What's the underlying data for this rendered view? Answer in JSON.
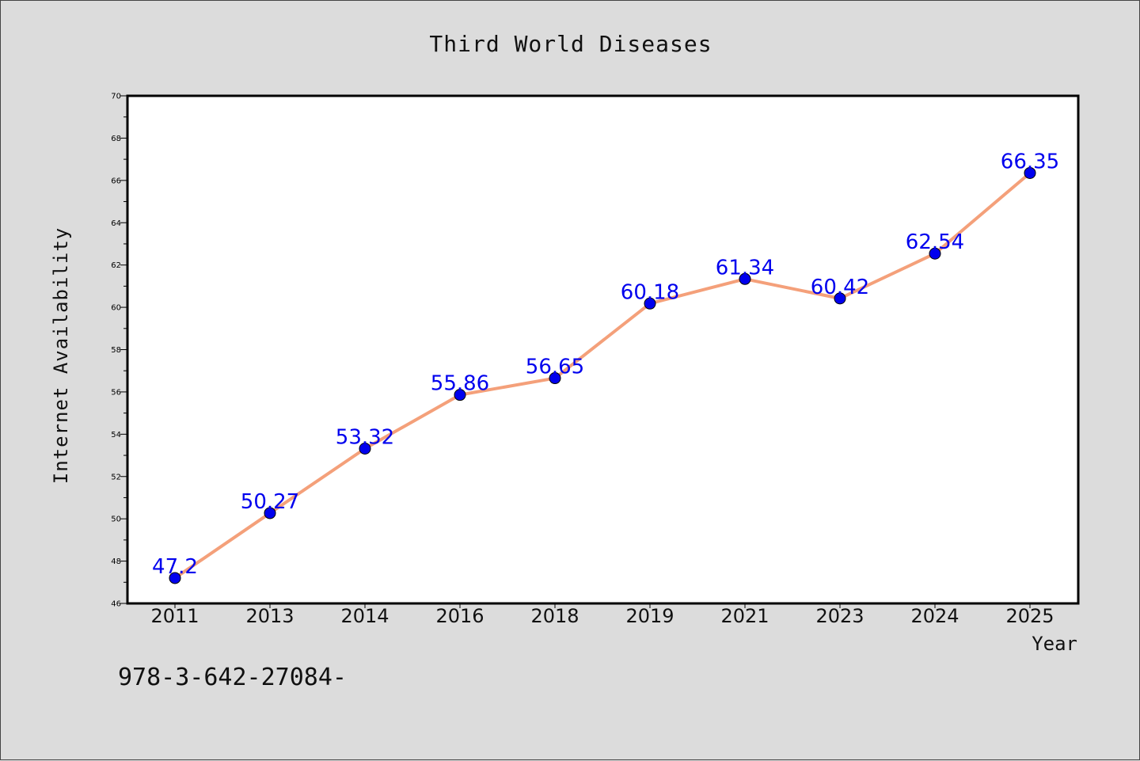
{
  "footer_code": "978-3-642-27084-",
  "chart_data": {
    "type": "line",
    "title": "Third World Diseases",
    "xlabel": "Year",
    "ylabel": "Internet Availability",
    "categories": [
      "2011",
      "2013",
      "2014",
      "2016",
      "2018",
      "2019",
      "2021",
      "2023",
      "2024",
      "2025"
    ],
    "values": [
      47.2,
      50.27,
      53.32,
      55.86,
      56.65,
      60.18,
      61.34,
      60.42,
      62.54,
      66.35
    ],
    "ylim": [
      46,
      70
    ],
    "yticks": [
      46,
      48,
      50,
      52,
      54,
      56,
      58,
      60,
      62,
      64,
      66,
      68,
      70
    ],
    "grid": false,
    "legend": "none",
    "colors": {
      "line": "#f4a07a",
      "marker": "#0000ee",
      "data_label": "#0000ee",
      "background": "#dcdcdc",
      "plot_area": "#ffffff"
    }
  }
}
